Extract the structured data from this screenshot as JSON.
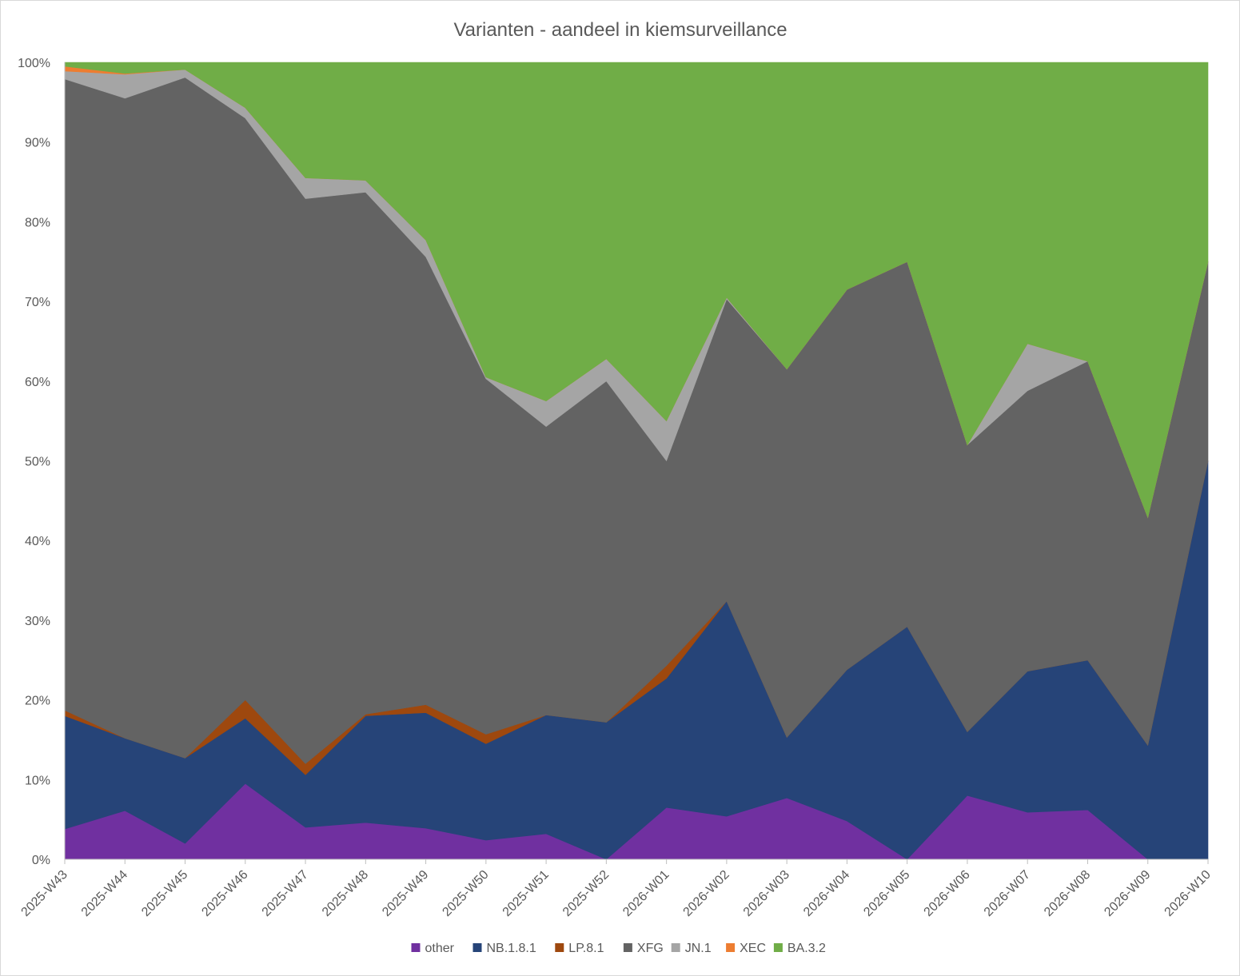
{
  "chart_data": {
    "type": "area",
    "stacked": true,
    "percent": true,
    "title": "Varianten - aandeel in kiemsurveillance",
    "xlabel": "",
    "ylabel": "",
    "ylim": [
      0,
      100
    ],
    "y_ticks": [
      "0%",
      "10%",
      "20%",
      "30%",
      "40%",
      "50%",
      "60%",
      "70%",
      "80%",
      "90%",
      "100%"
    ],
    "grid": false,
    "legend_position": "bottom",
    "categories": [
      "2025-W43",
      "2025-W44",
      "2025-W45",
      "2025-W46",
      "2025-W47",
      "2025-W48",
      "2025-W49",
      "2025-W50",
      "2025-W51",
      "2025-W52",
      "2026-W01",
      "2026-W02",
      "2026-W03",
      "2026-W04",
      "2026-W05",
      "2026-W06",
      "2026-W07",
      "2026-W08",
      "2026-W09",
      "2026-W10"
    ],
    "series": [
      {
        "name": "other",
        "color": "#7030a0",
        "values": [
          3.8,
          6.1,
          2.0,
          9.5,
          4.0,
          4.6,
          3.9,
          2.4,
          3.2,
          0.0,
          6.5,
          5.4,
          7.7,
          4.8,
          0.0,
          8.0,
          5.9,
          6.2,
          0.0,
          0.0
        ]
      },
      {
        "name": "NB.1.8.1",
        "color": "#264478",
        "values": [
          14.2,
          9.1,
          10.7,
          8.2,
          6.6,
          13.4,
          14.5,
          12.1,
          14.9,
          17.2,
          16.2,
          27.0,
          7.6,
          19.0,
          29.2,
          8.0,
          17.7,
          18.8,
          14.3,
          50.0
        ]
      },
      {
        "name": "LP.8.1",
        "color": "#9e480e",
        "values": [
          0.7,
          0.0,
          0.0,
          2.3,
          1.4,
          0.2,
          1.0,
          1.2,
          0.0,
          0.0,
          1.6,
          0.0,
          0.0,
          0.0,
          0.0,
          0.0,
          0.0,
          0.0,
          0.0,
          0.0
        ]
      },
      {
        "name": "XFG",
        "color": "#636363",
        "values": [
          79.2,
          80.3,
          85.4,
          73.0,
          70.9,
          65.5,
          56.2,
          44.6,
          36.2,
          42.8,
          25.7,
          37.9,
          46.2,
          47.7,
          45.8,
          36.0,
          35.2,
          37.5,
          28.6,
          25.0
        ]
      },
      {
        "name": "JN.1",
        "color": "#a5a5a5",
        "values": [
          1.0,
          3.0,
          1.0,
          1.3,
          2.6,
          1.5,
          2.1,
          0.2,
          3.2,
          2.8,
          5.0,
          0.2,
          0.0,
          0.0,
          0.0,
          0.0,
          5.9,
          0.0,
          0.0,
          0.0
        ]
      },
      {
        "name": "XEC",
        "color": "#ed7d31",
        "values": [
          0.6,
          0.1,
          0.0,
          0.0,
          0.0,
          0.0,
          0.0,
          0.0,
          0.0,
          0.0,
          0.0,
          0.0,
          0.0,
          0.0,
          0.0,
          0.0,
          0.0,
          0.0,
          0.0,
          0.0
        ]
      },
      {
        "name": "BA.3.2",
        "color": "#70ad47",
        "values": [
          0.5,
          1.4,
          0.9,
          5.7,
          14.5,
          14.8,
          22.3,
          39.5,
          42.5,
          37.2,
          45.0,
          29.5,
          38.5,
          28.5,
          25.0,
          48.0,
          35.3,
          37.5,
          57.1,
          25.0
        ]
      }
    ]
  }
}
